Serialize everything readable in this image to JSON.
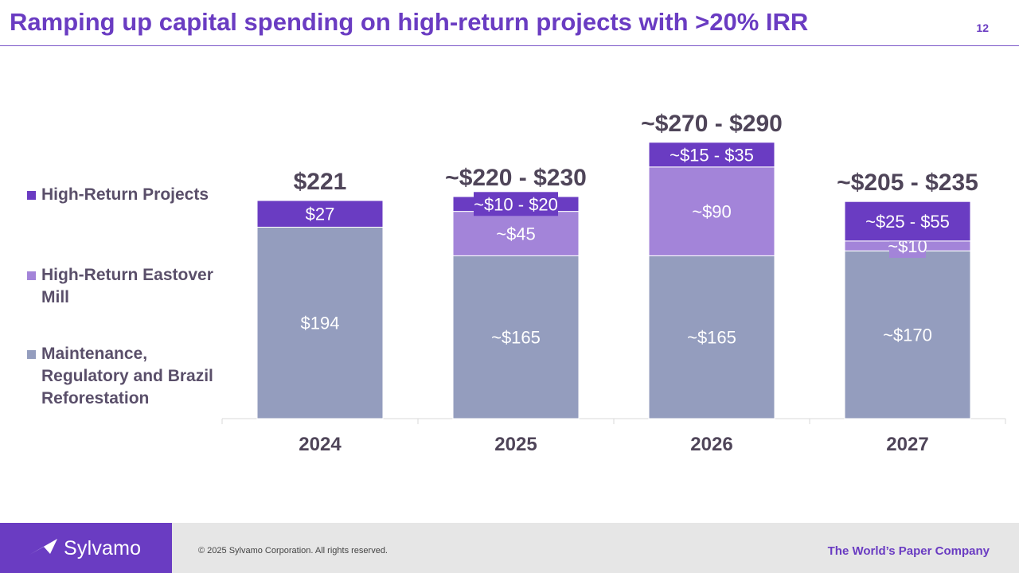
{
  "header": {
    "title": "Ramping up capital spending on high-return projects with >20% IRR",
    "page_number": "12"
  },
  "legend": {
    "items": [
      {
        "label": "High-Return Projects",
        "color": "#6a3cc2"
      },
      {
        "label": "High-Return Eastover Mill",
        "color": "#a384d9"
      },
      {
        "label": "Maintenance, Regulatory and Brazil Reforestation",
        "color": "#949dbe"
      }
    ]
  },
  "chart_data": {
    "type": "bar",
    "stacked": true,
    "title": "",
    "xlabel": "",
    "ylabel": "",
    "categories": [
      "2024",
      "2025",
      "2026",
      "2027"
    ],
    "ylim": [
      0,
      300
    ],
    "series": [
      {
        "name": "Maintenance, Regulatory and Brazil Reforestation",
        "color": "#949dbe",
        "values": [
          194,
          165,
          165,
          170
        ],
        "labels": [
          "$194",
          "~$165",
          "~$165",
          "~$170"
        ]
      },
      {
        "name": "High-Return Eastover Mill",
        "color": "#a384d9",
        "values": [
          0,
          45,
          90,
          10
        ],
        "labels": [
          "",
          "~$45",
          "~$90",
          "~$10"
        ]
      },
      {
        "name": "High-Return Projects",
        "color": "#6a3cc2",
        "values": [
          27,
          15,
          25,
          40
        ],
        "labels": [
          "$27",
          "~$10 - $20",
          "~$15 - $35",
          "~$25 - $55"
        ]
      }
    ],
    "totals": [
      221,
      225,
      280,
      220
    ],
    "total_labels": [
      "$221",
      "~$220 - $230",
      "~$270 - $290",
      "~$205 - $235"
    ]
  },
  "footer": {
    "brand": "Sylvamo",
    "copyright": "© 2025 Sylvamo Corporation. All rights reserved.",
    "tagline": "The World’s Paper Company"
  }
}
